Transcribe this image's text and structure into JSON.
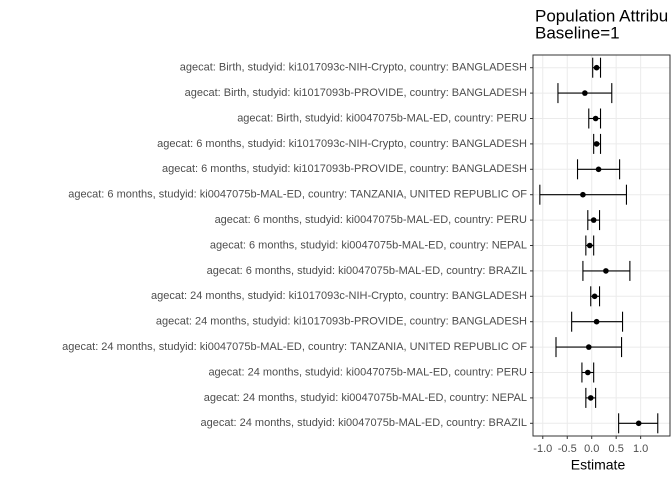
{
  "chart_data": {
    "type": "forest",
    "title": [
      "Population Attribu",
      "Baseline=1"
    ],
    "xlabel": "Estimate",
    "categories": [
      "agecat: Birth, studyid: ki1017093c-NIH-Crypto, country: BANGLADESH",
      "agecat: Birth, studyid: ki1017093b-PROVIDE, country: BANGLADESH",
      "agecat: Birth, studyid: ki0047075b-MAL-ED, country: PERU",
      "agecat: 6 months, studyid: ki1017093c-NIH-Crypto, country: BANGLADESH",
      "agecat: 6 months, studyid: ki1017093b-PROVIDE, country: BANGLADESH",
      "agecat: 6 months, studyid: ki0047075b-MAL-ED, country: TANZANIA, UNITED REPUBLIC OF",
      "agecat: 6 months, studyid: ki0047075b-MAL-ED, country: PERU",
      "agecat: 6 months, studyid: ki0047075b-MAL-ED, country: NEPAL",
      "agecat: 6 months, studyid: ki0047075b-MAL-ED, country: BRAZIL",
      "agecat: 24 months, studyid: ki1017093c-NIH-Crypto, country: BANGLADESH",
      "agecat: 24 months, studyid: ki1017093b-PROVIDE, country: BANGLADESH",
      "agecat: 24 months, studyid: ki0047075b-MAL-ED, country: TANZANIA, UNITED REPUBLIC OF",
      "agecat: 24 months, studyid: ki0047075b-MAL-ED, country: PERU",
      "agecat: 24 months, studyid: ki0047075b-MAL-ED, country: NEPAL",
      "agecat: 24 months, studyid: ki0047075b-MAL-ED, country: BRAZIL"
    ],
    "values": [
      0.1,
      -0.14,
      0.08,
      0.1,
      0.14,
      -0.18,
      0.04,
      -0.04,
      0.29,
      0.06,
      0.1,
      -0.06,
      -0.08,
      -0.02,
      0.96
    ],
    "lower": [
      0.02,
      -0.69,
      -0.06,
      0.04,
      -0.29,
      -1.06,
      -0.08,
      -0.12,
      -0.18,
      -0.02,
      -0.41,
      -0.73,
      -0.2,
      -0.12,
      0.55
    ],
    "upper": [
      0.18,
      0.41,
      0.18,
      0.18,
      0.57,
      0.71,
      0.16,
      0.04,
      0.78,
      0.16,
      0.63,
      0.61,
      0.04,
      0.08,
      1.35
    ],
    "color": "#000000",
    "xlim": [
      -1.2,
      1.6
    ],
    "xticks": [
      {
        "value": -1,
        "label": "-1.0"
      },
      -0.5,
      {
        "value": 0,
        "label": "0.0"
      },
      0.5,
      {
        "value": 1,
        "label": "1.0"
      }
    ],
    "grid": true
  }
}
